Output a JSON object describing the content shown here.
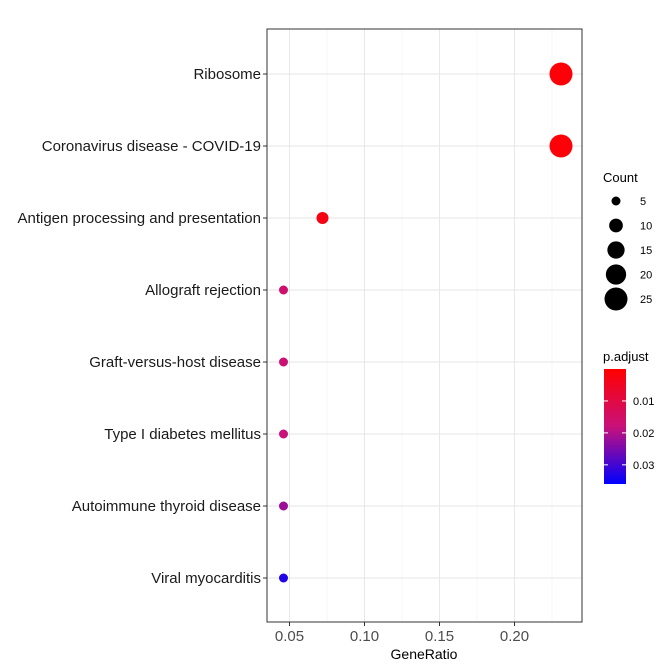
{
  "chart_data": {
    "type": "scatter",
    "xlabel": "GeneRatio",
    "ylabel": "",
    "xlim": [
      0.035,
      0.245
    ],
    "xticks": [
      "0.05",
      "0.10",
      "0.15",
      "0.20"
    ],
    "xtick_values": [
      0.05,
      0.1,
      0.15,
      0.2
    ],
    "categories": [
      "Ribosome",
      "Coronavirus disease - COVID-19",
      "Antigen processing and presentation",
      "Allograft rejection",
      "Graft-versus-host disease",
      "Type I diabetes mellitus",
      "Autoimmune thyroid disease",
      "Viral myocarditis"
    ],
    "points": [
      {
        "term": "Ribosome",
        "gene_ratio": 0.231,
        "count": 25,
        "p_adjust": 0.001
      },
      {
        "term": "Coronavirus disease - COVID-19",
        "gene_ratio": 0.231,
        "count": 25,
        "p_adjust": 0.001
      },
      {
        "term": "Antigen processing and presentation",
        "gene_ratio": 0.072,
        "count": 8,
        "p_adjust": 0.003
      },
      {
        "term": "Allograft rejection",
        "gene_ratio": 0.046,
        "count": 5,
        "p_adjust": 0.016
      },
      {
        "term": "Graft-versus-host disease",
        "gene_ratio": 0.046,
        "count": 5,
        "p_adjust": 0.017
      },
      {
        "term": "Type I diabetes mellitus",
        "gene_ratio": 0.046,
        "count": 5,
        "p_adjust": 0.018
      },
      {
        "term": "Autoimmune thyroid disease",
        "gene_ratio": 0.046,
        "count": 5,
        "p_adjust": 0.022
      },
      {
        "term": "Viral myocarditis",
        "gene_ratio": 0.046,
        "count": 5,
        "p_adjust": 0.033
      }
    ],
    "size_legend": {
      "title": "Count",
      "values": [
        5,
        10,
        15,
        20,
        25
      ]
    },
    "color_legend": {
      "title": "p.adjust",
      "range": [
        0.036,
        0.0
      ],
      "ticks": [
        "0.01",
        "0.02",
        "0.03"
      ],
      "tick_values": [
        0.01,
        0.02,
        0.03
      ],
      "low_color": "#ff0000",
      "high_color": "#0000ff"
    },
    "grid": true,
    "legend_position": "right"
  }
}
